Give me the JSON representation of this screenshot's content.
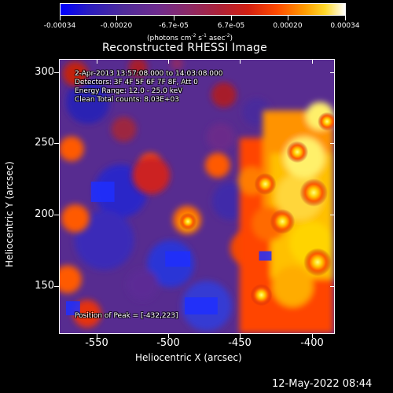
{
  "colorbar": {
    "ticks": [
      "-0.00034",
      "-0.00020",
      "-6.7e-05",
      "6.7e-05",
      "0.00020",
      "0.00034"
    ],
    "units_base": "(photons cm",
    "units_exp1": "-2",
    "units_mid1": " s",
    "units_exp2": "-1",
    "units_mid2": " asec",
    "units_exp3": "-2",
    "units_close": ")",
    "color_min": "#0000ff",
    "color_mid": "#8c2a67",
    "color_max": "#ffffff"
  },
  "title": "Reconstructed RHESSI Image",
  "overlay": {
    "time_range": "2-Apr-2013 13:57:08.000 to 14:03:08.000",
    "detectors": "Detectors: 3F 4F 5F 6F 7F 8F, Att 0",
    "energy_range": "Energy Range: 12.0 - 25.0 keV",
    "clean_counts": "Clean    Total counts: 8.03E+03",
    "peak": "Position of Peak = [-432,223]"
  },
  "axes": {
    "x_title": "Heliocentric X (arcsec)",
    "y_title": "Heliocentric Y (arcsec)",
    "x_ticks": [
      "-550",
      "-500",
      "-450",
      "-400"
    ],
    "y_ticks": [
      "300",
      "250",
      "200",
      "150"
    ],
    "xlim": [
      -574,
      -382
    ],
    "ylim": [
      116,
      308
    ]
  },
  "footer": {
    "timestamp": "12-May-2022 08:44"
  }
}
